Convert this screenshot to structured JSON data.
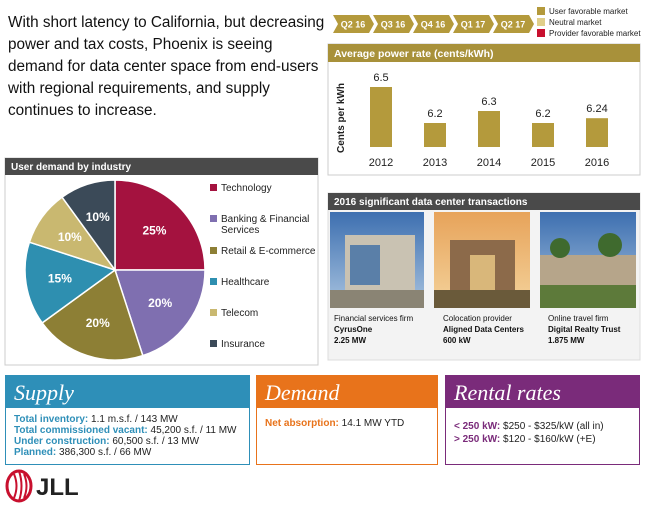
{
  "intro": "With short latency to California, but decreasing power and tax costs, Phoenix is seeing demand for data center space from end-users with regional requirements, and supply continues to increase.",
  "timeline": {
    "labels": [
      "Q2 16",
      "Q3 16",
      "Q4 16",
      "Q1 17",
      "Q2 17"
    ],
    "color": "#b49a3c"
  },
  "market_legend": [
    {
      "label": "User favorable market",
      "color": "#b49a3c"
    },
    {
      "label": "Neutral market",
      "color": "#e0cf8a"
    },
    {
      "label": "Provider favorable market",
      "color": "#c8102e"
    }
  ],
  "chart_data": [
    {
      "type": "bar",
      "title": "Average power rate (cents/kWh)",
      "y_label": "Cents per kWh",
      "categories": [
        "2012",
        "2013",
        "2014",
        "2015",
        "2016"
      ],
      "values": [
        6.5,
        6.2,
        6.3,
        6.2,
        6.24
      ],
      "color": "#b49a3c",
      "ylim": [
        6.0,
        6.6
      ]
    },
    {
      "type": "pie",
      "title": "User demand by industry",
      "categories": [
        "Technology",
        "Banking & Financial Services",
        "Retail & E-commerce",
        "Healthcare",
        "Telecom",
        "Insurance"
      ],
      "values": [
        25,
        20,
        20,
        15,
        10,
        10
      ],
      "value_labels": [
        "25%",
        "20%",
        "20%",
        "15%",
        "10%",
        "10%"
      ],
      "colors": [
        "#a4123f",
        "#7f6fb0",
        "#8d7f35",
        "#2e8fb0",
        "#c9b870",
        "#3b4a58"
      ]
    }
  ],
  "transactions": {
    "title": "2016  significant data center transactions",
    "items": [
      {
        "lines": [
          "Financial services firm",
          "CyrusOne",
          "2.25 MW"
        ]
      },
      {
        "lines": [
          "Colocation provider",
          "Aligned Data Centers",
          "600 kW"
        ]
      },
      {
        "lines": [
          "Online travel firm",
          "Digital Realty Trust",
          "1.875 MW"
        ]
      }
    ]
  },
  "supply": {
    "title": "Supply",
    "rows": [
      {
        "label": "Total inventory:",
        "value": "1.1 m.s.f. / 143 MW"
      },
      {
        "label": "Total commissioned vacant:",
        "value": "45,200 s.f. / 11 MW"
      },
      {
        "label": "Under construction:",
        "value": "60,500 s.f. / 13 MW"
      },
      {
        "label": "Planned:",
        "value": "386,300 s.f. / 66 MW"
      }
    ]
  },
  "demand": {
    "title": "Demand",
    "rows": [
      {
        "label": "Net absorption:",
        "value": "14.1 MW YTD"
      }
    ]
  },
  "rental": {
    "title": "Rental rates",
    "rows": [
      {
        "label": "< 250 kW:",
        "value": "$250 - $325/kW (all in)"
      },
      {
        "label": "> 250 kW:",
        "value": "$120 - $160/kW (+E)"
      }
    ]
  },
  "logo": "JLL"
}
